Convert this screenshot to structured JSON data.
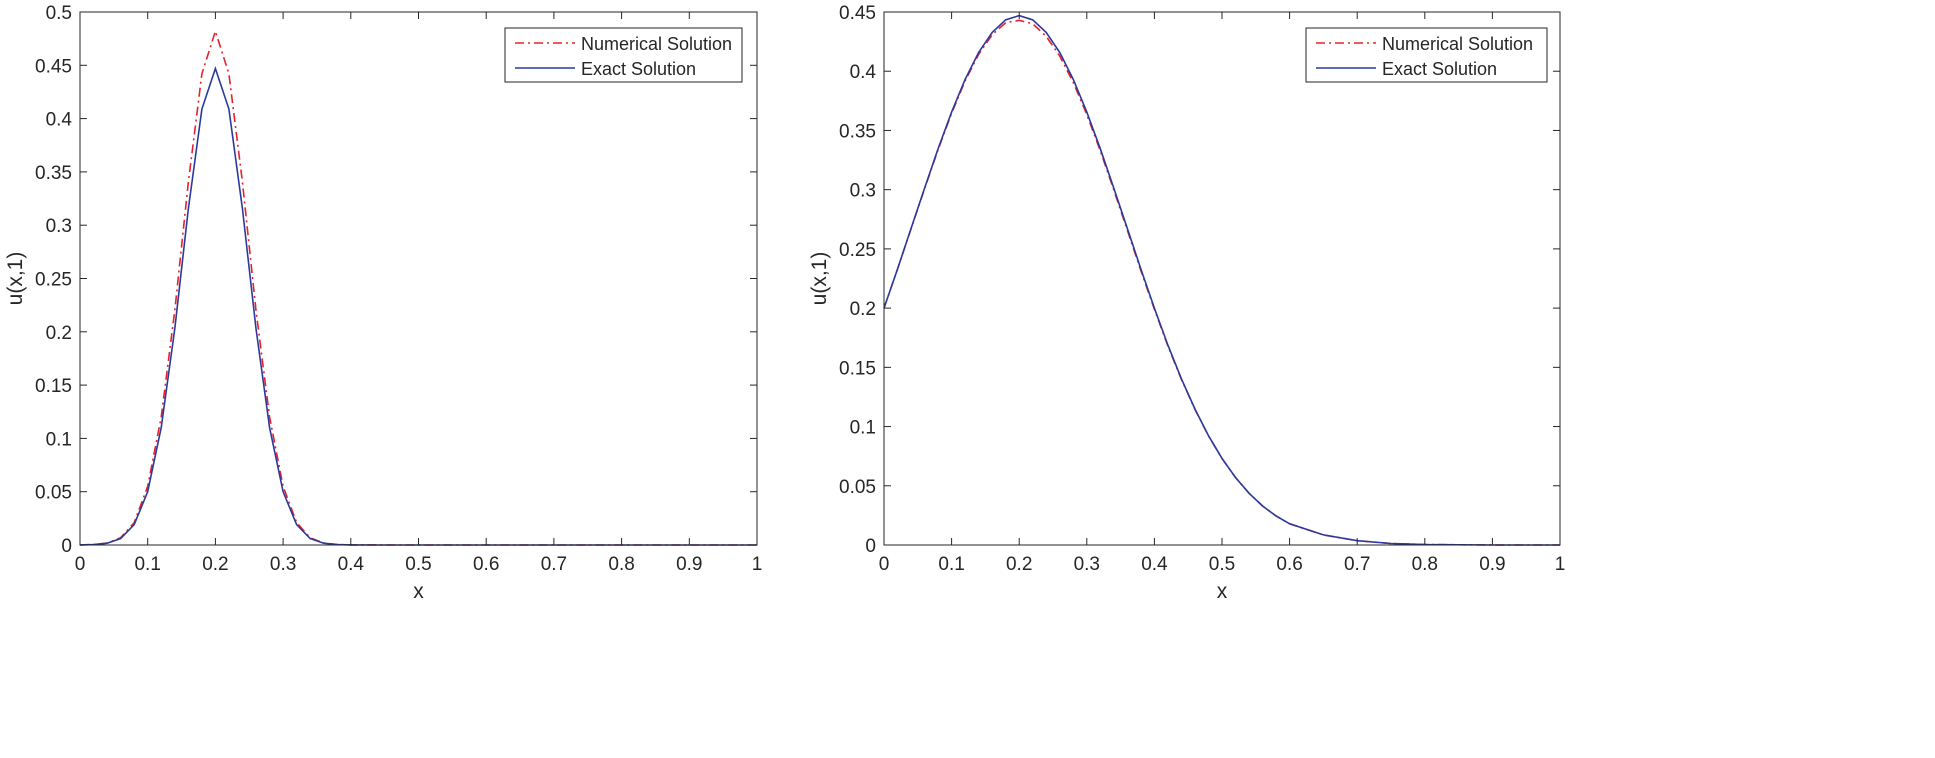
{
  "chart_data": [
    {
      "type": "line",
      "xlabel": "x",
      "ylabel": "u(x,1)",
      "xlim": [
        0,
        1
      ],
      "ylim": [
        0,
        0.5
      ],
      "xticks": [
        "0",
        "0.1",
        "0.2",
        "0.3",
        "0.4",
        "0.5",
        "0.6",
        "0.7",
        "0.8",
        "0.9",
        "1"
      ],
      "yticks": [
        "0",
        "0.05",
        "0.1",
        "0.15",
        "0.2",
        "0.25",
        "0.3",
        "0.35",
        "0.4",
        "0.45",
        "0.5"
      ],
      "legend_position": "top-right",
      "grid": false,
      "x": [
        0,
        0.02,
        0.04,
        0.06,
        0.08,
        0.1,
        0.12,
        0.14,
        0.16,
        0.18,
        0.2,
        0.22,
        0.24,
        0.26,
        0.28,
        0.3,
        0.32,
        0.34,
        0.36,
        0.38,
        0.4,
        0.45,
        0.5,
        0.6,
        0.7,
        0.8,
        0.9,
        1
      ],
      "series": [
        {
          "name": "Numerical Solution",
          "color": "#e8202a",
          "style": "dash-dot",
          "values": [
            0.0001,
            0.0004,
            0.0018,
            0.0068,
            0.021,
            0.055,
            0.12,
            0.22,
            0.34,
            0.442,
            0.482,
            0.442,
            0.34,
            0.22,
            0.12,
            0.055,
            0.021,
            0.0068,
            0.0018,
            0.0004,
            0.0001,
            0,
            0,
            0,
            0,
            0,
            0,
            0
          ]
        },
        {
          "name": "Exact Solution",
          "color": "#2a3a9c",
          "style": "solid",
          "values": [
            0.0001,
            0.0004,
            0.0017,
            0.0061,
            0.0191,
            0.05,
            0.11,
            0.203,
            0.315,
            0.409,
            0.447,
            0.409,
            0.315,
            0.203,
            0.11,
            0.05,
            0.0191,
            0.0061,
            0.0017,
            0.0004,
            0.0001,
            0,
            0,
            0,
            0,
            0,
            0,
            0
          ]
        }
      ]
    },
    {
      "type": "line",
      "xlabel": "x",
      "ylabel": "u(x,1)",
      "xlim": [
        0,
        1
      ],
      "ylim": [
        0,
        0.45
      ],
      "xticks": [
        "0",
        "0.1",
        "0.2",
        "0.3",
        "0.4",
        "0.5",
        "0.6",
        "0.7",
        "0.8",
        "0.9",
        "1"
      ],
      "yticks": [
        "0",
        "0.05",
        "0.1",
        "0.15",
        "0.2",
        "0.25",
        "0.3",
        "0.35",
        "0.4",
        "0.45"
      ],
      "legend_position": "top-right",
      "grid": false,
      "x": [
        0,
        0.02,
        0.04,
        0.06,
        0.08,
        0.1,
        0.12,
        0.14,
        0.16,
        0.18,
        0.2,
        0.22,
        0.24,
        0.26,
        0.28,
        0.3,
        0.32,
        0.34,
        0.36,
        0.38,
        0.4,
        0.42,
        0.44,
        0.46,
        0.48,
        0.5,
        0.52,
        0.54,
        0.56,
        0.58,
        0.6,
        0.65,
        0.7,
        0.75,
        0.8,
        0.9,
        1
      ],
      "series": [
        {
          "name": "Numerical Solution",
          "color": "#e8202a",
          "style": "dash-dot",
          "values": [
            0.2,
            0.2329,
            0.2668,
            0.3008,
            0.3338,
            0.3645,
            0.3918,
            0.4142,
            0.4308,
            0.441,
            0.443,
            0.44,
            0.4295,
            0.4128,
            0.3905,
            0.3635,
            0.3328,
            0.2997,
            0.2656,
            0.2316,
            0.199,
            0.168,
            0.1398,
            0.1144,
            0.0921,
            0.073,
            0.057,
            0.0437,
            0.0329,
            0.0245,
            0.0179,
            0.0085,
            0.0036,
            0.0013,
            0.0004,
            0,
            0
          ]
        },
        {
          "name": "Exact Solution",
          "color": "#2a3a9c",
          "style": "solid",
          "values": [
            0.2,
            0.2329,
            0.2671,
            0.3013,
            0.3346,
            0.3655,
            0.393,
            0.4158,
            0.4328,
            0.4434,
            0.447,
            0.4434,
            0.4328,
            0.4158,
            0.393,
            0.3655,
            0.3346,
            0.3013,
            0.2671,
            0.2329,
            0.2,
            0.1688,
            0.1403,
            0.1147,
            0.0923,
            0.0731,
            0.057,
            0.0437,
            0.0329,
            0.0245,
            0.0179,
            0.0085,
            0.0036,
            0.0013,
            0.0004,
            0,
            0
          ]
        }
      ]
    }
  ]
}
